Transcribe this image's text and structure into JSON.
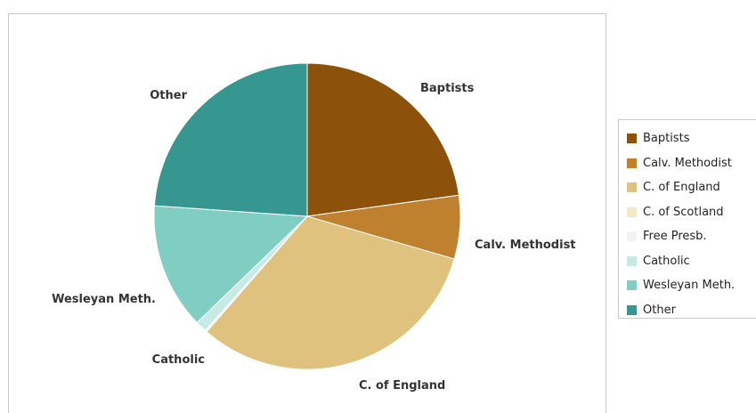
{
  "chart_data": {
    "type": "pie",
    "categories": [
      "Baptists",
      "Calv. Methodist",
      "C. of England",
      "C. of Scotland",
      "Free Presb.",
      "Catholic",
      "Wesleyan Meth.",
      "Other"
    ],
    "values": [
      22.8,
      6.7,
      31.9,
      0.1,
      0.1,
      1.2,
      13.3,
      23.9
    ],
    "colors": [
      "#8c510a",
      "#bf812d",
      "#dfc27d",
      "#f6e8c3",
      "#f5f5f5",
      "#c7eae5",
      "#80cdc1",
      "#35978f"
    ],
    "slice_labels": [
      "Baptists",
      "Calv. Methodist",
      "C. of England",
      "",
      "",
      "Catholic",
      "Wesleyan Meth.",
      "Other"
    ],
    "legend_position": "right",
    "title": ""
  }
}
